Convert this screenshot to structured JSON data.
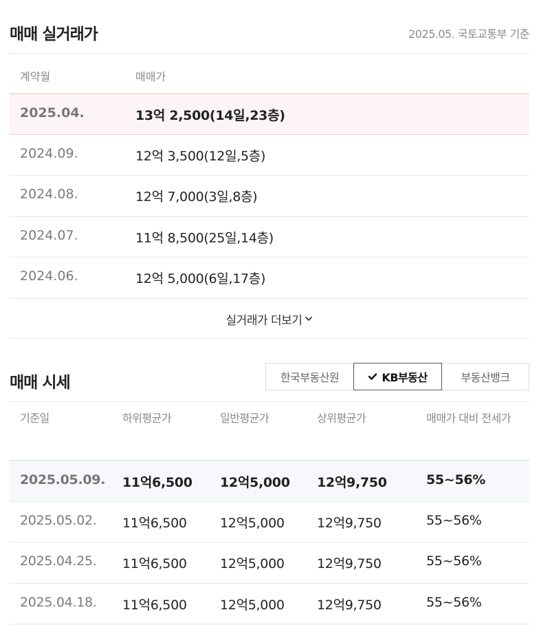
{
  "sale_section": {
    "title": "매매 실거래가",
    "source": "2025.05. 국토교통부 기준",
    "columns": [
      "계약월",
      "매매가"
    ],
    "rows": [
      {
        "month": "2025.04.",
        "price": "13억 2,500(14일,23층)"
      },
      {
        "month": "2024.09.",
        "price": "12억 3,500(12일,5층)"
      },
      {
        "month": "2024.08.",
        "price": "12억 7,000(3일,8층)"
      },
      {
        "month": "2024.07.",
        "price": "11억 8,500(25일,14층)"
      },
      {
        "month": "2024.06.",
        "price": "12억 5,000(6일,17층)"
      }
    ],
    "more_label": "실거래가 더보기"
  },
  "market_section": {
    "title": "매매 시세",
    "providers": [
      "한국부동산원",
      "KB부동산",
      "부동산뱅크"
    ],
    "selected_provider": "KB부동산",
    "columns": [
      "기준일",
      "하위평균가",
      "일반평균가",
      "상위평균가",
      "매매가 대비 전세가"
    ],
    "rows": [
      {
        "date": "2025.05.09.",
        "low": "11억6,500",
        "avg": "12억5,000",
        "high": "12억9,750",
        "ratio": "55~56%"
      },
      {
        "date": "2025.05.02.",
        "low": "11억6,500",
        "avg": "12억5,000",
        "high": "12억9,750",
        "ratio": "55~56%"
      },
      {
        "date": "2025.04.25.",
        "low": "11억6,500",
        "avg": "12억5,000",
        "high": "12억9,750",
        "ratio": "55~56%"
      },
      {
        "date": "2025.04.18.",
        "low": "11억6,500",
        "avg": "12억5,000",
        "high": "12억9,750",
        "ratio": "55~56%"
      }
    ]
  },
  "colors": {
    "highlight_row_sale": "#fdf5f5",
    "highlight_row_market": "#f6f8fb",
    "muted_text": "#8a8a8a"
  },
  "icons": {
    "more": "chevron-down-icon",
    "selected": "check-icon"
  }
}
